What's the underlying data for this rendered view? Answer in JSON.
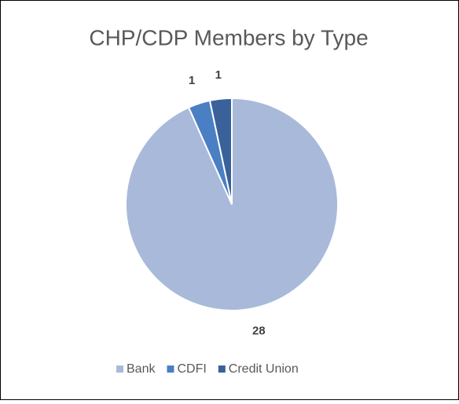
{
  "chart_data": {
    "type": "pie",
    "title": "CHP/CDP Members by Type",
    "categories": [
      "Bank",
      "CDFI",
      "Credit Union"
    ],
    "values": [
      28,
      1,
      1
    ],
    "colors": [
      "#a9b9da",
      "#4a7fc3",
      "#3a6199"
    ],
    "legend": "bottom"
  }
}
